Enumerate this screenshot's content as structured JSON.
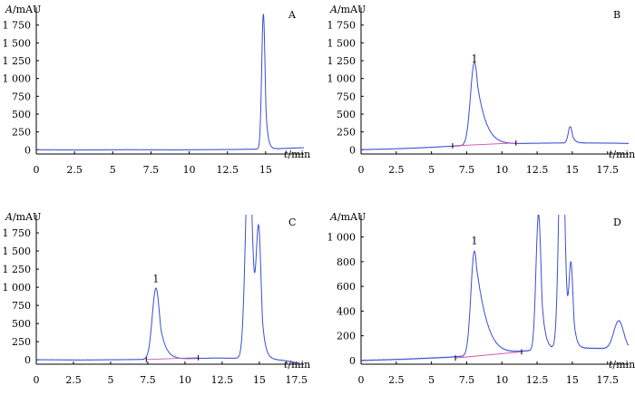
{
  "chart_data": [
    {
      "type": "line",
      "panel": "A",
      "panel_label": "A",
      "ylabel": "A/mAU",
      "xlabel": "t/min",
      "xlim": [
        0,
        17.5
      ],
      "ylim": [
        -60,
        2000
      ],
      "xticks": [
        {
          "v": 0,
          "label": "0"
        },
        {
          "v": 2.5,
          "label": "2.5"
        },
        {
          "v": 5,
          "label": "5"
        },
        {
          "v": 7.5,
          "label": "7.5"
        },
        {
          "v": 10,
          "label": "10"
        },
        {
          "v": 12.5,
          "label": "12.5"
        },
        {
          "v": 15,
          "label": "15"
        }
      ],
      "yticks": [
        {
          "v": 0,
          "label": "0"
        },
        {
          "v": 250,
          "label": "250"
        },
        {
          "v": 500,
          "label": "500"
        },
        {
          "v": 750,
          "label": "750"
        },
        {
          "v": 1000,
          "label": "1 000"
        },
        {
          "v": 1250,
          "label": "1 250"
        },
        {
          "v": 1500,
          "label": "1 500"
        },
        {
          "v": 1750,
          "label": "1 750"
        }
      ],
      "baseline": [
        [
          0,
          0
        ],
        [
          3,
          -3
        ],
        [
          6,
          1
        ],
        [
          9,
          -2
        ],
        [
          11,
          1
        ],
        [
          13,
          4
        ],
        [
          15.5,
          12
        ],
        [
          17.3,
          28
        ]
      ],
      "peaks": [
        {
          "t": 14.85,
          "h": 1900,
          "w": 0.11,
          "tail": 0.14
        }
      ],
      "integration_line": [],
      "annotations": []
    },
    {
      "type": "line",
      "panel": "B",
      "panel_label": "B",
      "ylabel": "A/mAU",
      "xlabel": "t/min",
      "xlim": [
        0,
        19.0
      ],
      "ylim": [
        -60,
        2000
      ],
      "xticks": [
        {
          "v": 0,
          "label": "0"
        },
        {
          "v": 2.5,
          "label": "2.5"
        },
        {
          "v": 5,
          "label": "5"
        },
        {
          "v": 7.5,
          "label": "7.5"
        },
        {
          "v": 10,
          "label": "10"
        },
        {
          "v": 12.5,
          "label": "12.5"
        },
        {
          "v": 15,
          "label": "15"
        },
        {
          "v": 17.5,
          "label": "17.5"
        }
      ],
      "yticks": [
        {
          "v": 0,
          "label": "0"
        },
        {
          "v": 250,
          "label": "250"
        },
        {
          "v": 500,
          "label": "500"
        },
        {
          "v": 750,
          "label": "750"
        },
        {
          "v": 1000,
          "label": "1 000"
        },
        {
          "v": 1250,
          "label": "1 250"
        },
        {
          "v": 1500,
          "label": "1 500"
        },
        {
          "v": 1750,
          "label": "1 750"
        }
      ],
      "baseline": [
        [
          0,
          2
        ],
        [
          2,
          10
        ],
        [
          4,
          25
        ],
        [
          6,
          45
        ],
        [
          8,
          65
        ],
        [
          10,
          80
        ],
        [
          12,
          90
        ],
        [
          14,
          95
        ],
        [
          16,
          95
        ],
        [
          18,
          92
        ],
        [
          19,
          88
        ]
      ],
      "peaks": [
        {
          "t": 8.05,
          "h": 1160,
          "w": 0.28,
          "tail": 0.7
        },
        {
          "t": 14.85,
          "h": 230,
          "w": 0.14,
          "tail": 0.2
        }
      ],
      "integration_line": [
        [
          6.5,
          55
        ],
        [
          11.0,
          95
        ]
      ],
      "annotations": [
        {
          "t": 8.05,
          "y": 1230,
          "text": "1"
        }
      ]
    },
    {
      "type": "line",
      "panel": "C",
      "panel_label": "C",
      "ylabel": "A/mAU",
      "xlabel": "t/min",
      "xlim": [
        0,
        18.0
      ],
      "ylim": [
        -60,
        2000
      ],
      "xticks": [
        {
          "v": 0,
          "label": "0"
        },
        {
          "v": 2.5,
          "label": "2.5"
        },
        {
          "v": 5,
          "label": "5"
        },
        {
          "v": 7.5,
          "label": "7.5"
        },
        {
          "v": 10,
          "label": "10"
        },
        {
          "v": 12.5,
          "label": "12.5"
        },
        {
          "v": 15,
          "label": "15"
        },
        {
          "v": 17.5,
          "label": "17.5"
        }
      ],
      "yticks": [
        {
          "v": 0,
          "label": "0"
        },
        {
          "v": 250,
          "label": "250"
        },
        {
          "v": 500,
          "label": "500"
        },
        {
          "v": 750,
          "label": "750"
        },
        {
          "v": 1000,
          "label": "1 000"
        },
        {
          "v": 1250,
          "label": "1 250"
        },
        {
          "v": 1500,
          "label": "1 500"
        },
        {
          "v": 1750,
          "label": "1 750"
        }
      ],
      "baseline": [
        [
          0,
          2
        ],
        [
          3,
          -2
        ],
        [
          6,
          3
        ],
        [
          9,
          10
        ],
        [
          12,
          25
        ],
        [
          15,
          20
        ],
        [
          16.5,
          -5
        ],
        [
          17.3,
          -30
        ],
        [
          17.8,
          -80
        ],
        [
          18.0,
          -90
        ]
      ],
      "peaks": [
        {
          "t": 8.05,
          "h": 980,
          "w": 0.25,
          "tail": 0.4
        },
        {
          "t": 14.3,
          "h": 3000,
          "w": 0.22,
          "tail": 0.15
        },
        {
          "t": 14.95,
          "h": 1800,
          "w": 0.17,
          "tail": 0.22
        }
      ],
      "integration_line": [
        [
          7.4,
          5
        ],
        [
          10.9,
          30
        ]
      ],
      "annotations": [
        {
          "t": 8.05,
          "y": 1070,
          "text": "1"
        }
      ]
    },
    {
      "type": "line",
      "panel": "D",
      "panel_label": "D",
      "ylabel": "A/mAU",
      "xlabel": "t/min",
      "xlim": [
        0,
        19.0
      ],
      "ylim": [
        -30,
        1180
      ],
      "xticks": [
        {
          "v": 0,
          "label": "0"
        },
        {
          "v": 2.5,
          "label": "2.5"
        },
        {
          "v": 5,
          "label": "5"
        },
        {
          "v": 7.5,
          "label": "7.5"
        },
        {
          "v": 10,
          "label": "10"
        },
        {
          "v": 12.5,
          "label": "12.5"
        },
        {
          "v": 15,
          "label": "15"
        },
        {
          "v": 17.5,
          "label": "17.5"
        }
      ],
      "yticks": [
        {
          "v": 0,
          "label": "0"
        },
        {
          "v": 200,
          "label": "200"
        },
        {
          "v": 400,
          "label": "400"
        },
        {
          "v": 600,
          "label": "600"
        },
        {
          "v": 800,
          "label": "800"
        },
        {
          "v": 1000,
          "label": "1 000"
        }
      ],
      "baseline": [
        [
          0,
          0
        ],
        [
          3,
          10
        ],
        [
          6,
          25
        ],
        [
          8,
          40
        ],
        [
          10,
          60
        ],
        [
          12,
          80
        ],
        [
          14,
          95
        ],
        [
          16,
          100
        ],
        [
          18,
          95
        ],
        [
          19,
          85
        ]
      ],
      "peaks": [
        {
          "t": 8.05,
          "h": 845,
          "w": 0.25,
          "tail": 0.9
        },
        {
          "t": 12.6,
          "h": 1100,
          "w": 0.18,
          "tail": 0.25
        },
        {
          "t": 14.25,
          "h": 2000,
          "w": 0.2,
          "tail": 0.15
        },
        {
          "t": 14.9,
          "h": 680,
          "w": 0.15,
          "tail": 0.2
        },
        {
          "t": 18.3,
          "h": 230,
          "w": 0.35,
          "tail": 0.4
        }
      ],
      "integration_line": [
        [
          6.7,
          20
        ],
        [
          11.4,
          70
        ]
      ],
      "annotations": [
        {
          "t": 8.05,
          "y": 940,
          "text": "1"
        }
      ]
    }
  ]
}
